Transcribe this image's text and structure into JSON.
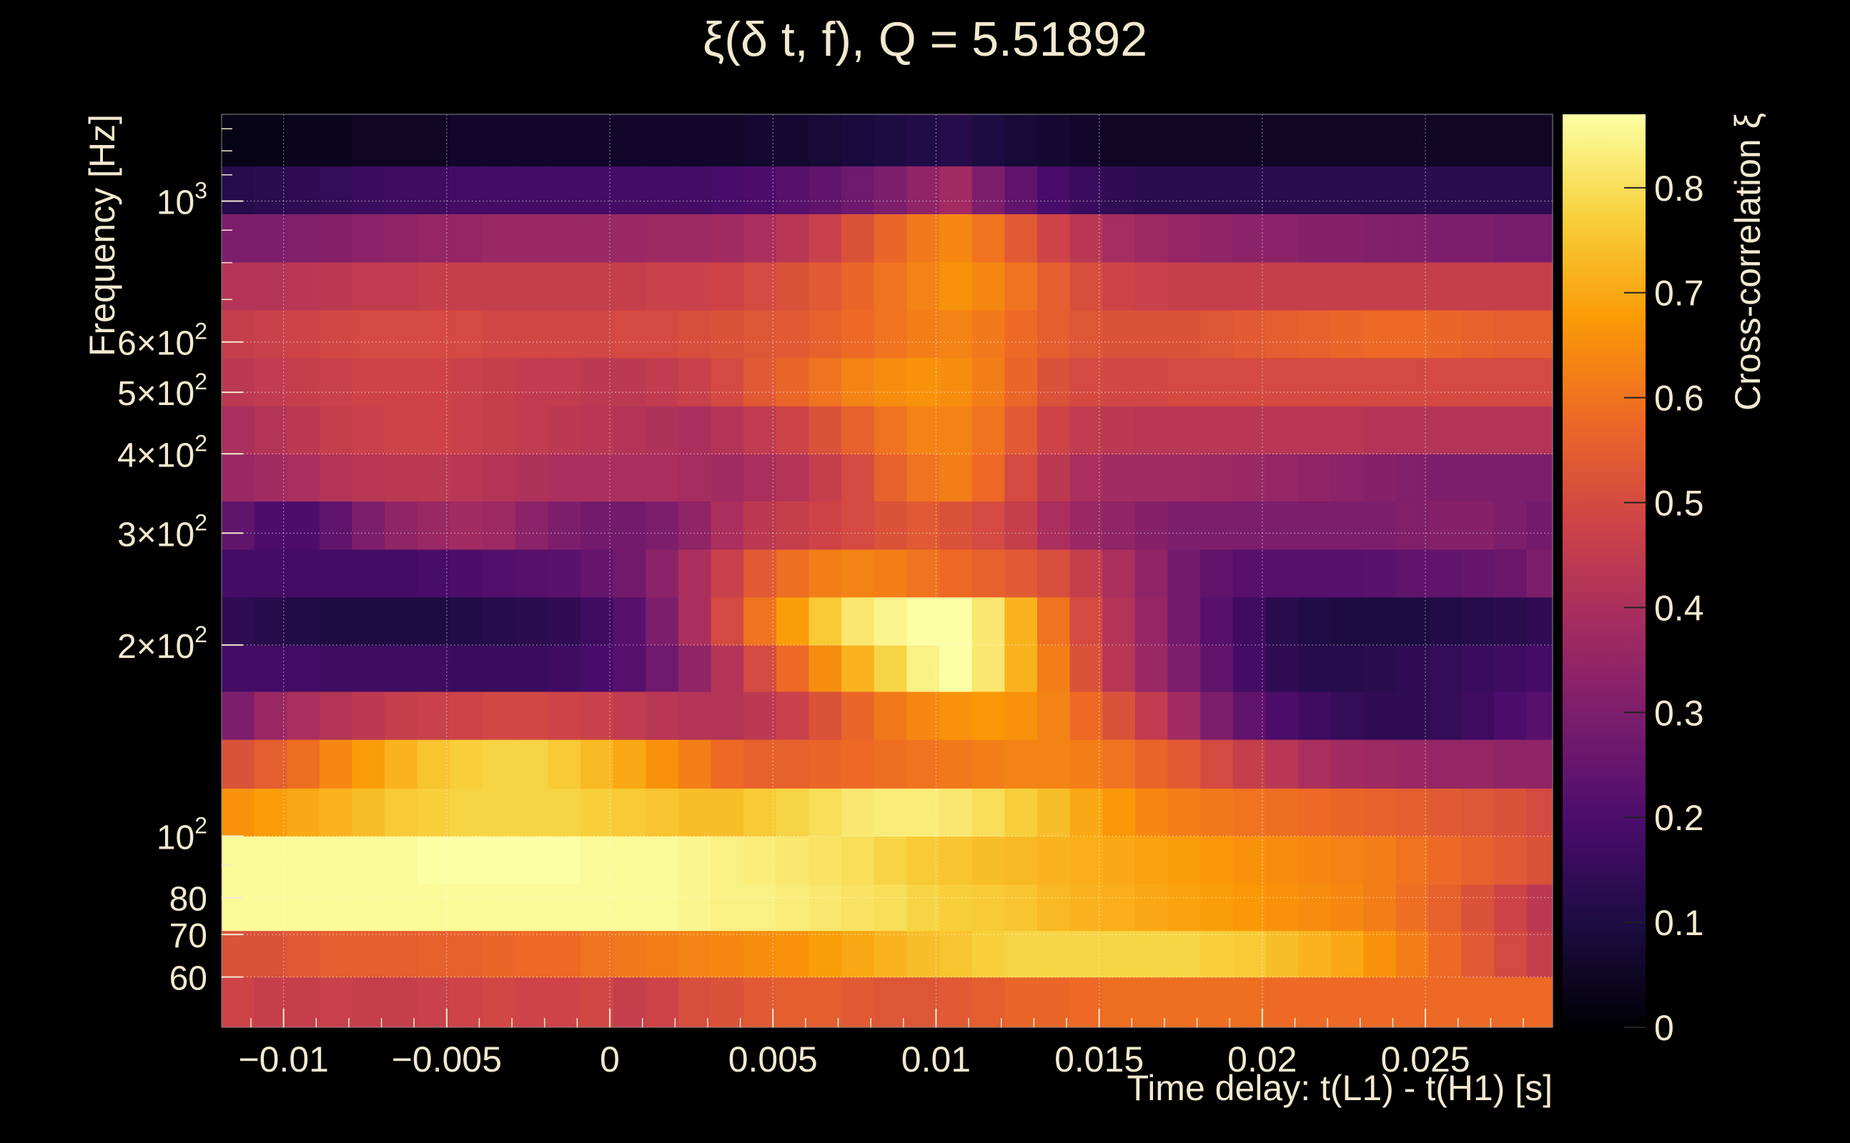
{
  "chart_data": {
    "type": "heatmap",
    "title": "ξ(δ t, f), Q = 5.51892",
    "xlabel": "Time delay: t(L1) - t(H1) [s]",
    "ylabel": "Frequency [Hz]",
    "colorbar_label": "Cross-correlation ξ",
    "xlim": [
      -0.0119,
      0.0289
    ],
    "ylim": [
      50,
      1370
    ],
    "y_scale": "log",
    "zlim": [
      0,
      0.87
    ],
    "colormap": [
      "#000004",
      "#1b0c41",
      "#4a0c6b",
      "#781c6d",
      "#a52c60",
      "#cf4446",
      "#ed6925",
      "#fb9b06",
      "#f7d13d",
      "#fcffa4"
    ],
    "grid": true,
    "x_ticks": [
      {
        "value": -0.01,
        "label": "−0.01"
      },
      {
        "value": -0.005,
        "label": "−0.005"
      },
      {
        "value": 0,
        "label": "0"
      },
      {
        "value": 0.005,
        "label": "0.005"
      },
      {
        "value": 0.01,
        "label": "0.01"
      },
      {
        "value": 0.015,
        "label": "0.015"
      },
      {
        "value": 0.02,
        "label": "0.02"
      },
      {
        "value": 0.025,
        "label": "0.025"
      }
    ],
    "y_ticks": [
      {
        "value": 60,
        "label": "60"
      },
      {
        "value": 70,
        "label": "70"
      },
      {
        "value": 80,
        "label": "80"
      },
      {
        "value": 100,
        "label": "10",
        "sup": "2"
      },
      {
        "value": 200,
        "label": "2×10",
        "sup": "2"
      },
      {
        "value": 300,
        "label": "3×10",
        "sup": "2"
      },
      {
        "value": 400,
        "label": "4×10",
        "sup": "2"
      },
      {
        "value": 500,
        "label": "5×10",
        "sup": "2"
      },
      {
        "value": 600,
        "label": "6×10",
        "sup": "2"
      },
      {
        "value": 1000,
        "label": "10",
        "sup": "3"
      }
    ],
    "colorbar_ticks": [
      {
        "value": 0,
        "label": "0"
      },
      {
        "value": 0.1,
        "label": "0.1"
      },
      {
        "value": 0.2,
        "label": "0.2"
      },
      {
        "value": 0.3,
        "label": "0.3"
      },
      {
        "value": 0.4,
        "label": "0.4"
      },
      {
        "value": 0.5,
        "label": "0.5"
      },
      {
        "value": 0.6,
        "label": "0.6"
      },
      {
        "value": 0.7,
        "label": "0.7"
      },
      {
        "value": 0.8,
        "label": "0.8"
      }
    ],
    "row_edges_hz": [
      50,
      60,
      71,
      84,
      100,
      119,
      142,
      169,
      200,
      238,
      283,
      337,
      400,
      476,
      567,
      674,
      802,
      955,
      1136,
      1370
    ],
    "x_bin_start": -0.0119,
    "x_bin_width": 0.001,
    "values": [
      [
        0.48,
        0.46,
        0.46,
        0.47,
        0.46,
        0.46,
        0.47,
        0.48,
        0.49,
        0.48,
        0.48,
        0.49,
        0.46,
        0.48,
        0.51,
        0.52,
        0.54,
        0.55,
        0.55,
        0.54,
        0.53,
        0.53,
        0.54,
        0.55,
        0.57,
        0.57,
        0.58,
        0.59,
        0.59,
        0.59,
        0.59,
        0.59,
        0.58,
        0.58,
        0.58,
        0.58,
        0.58,
        0.58,
        0.58,
        0.58,
        0.58
      ],
      [
        0.52,
        0.52,
        0.54,
        0.55,
        0.55,
        0.55,
        0.56,
        0.56,
        0.57,
        0.58,
        0.58,
        0.6,
        0.61,
        0.62,
        0.63,
        0.64,
        0.65,
        0.66,
        0.68,
        0.7,
        0.72,
        0.74,
        0.75,
        0.77,
        0.78,
        0.78,
        0.78,
        0.78,
        0.78,
        0.78,
        0.77,
        0.76,
        0.74,
        0.72,
        0.7,
        0.66,
        0.62,
        0.58,
        0.54,
        0.5,
        0.46
      ],
      [
        0.86,
        0.86,
        0.86,
        0.86,
        0.86,
        0.86,
        0.86,
        0.86,
        0.86,
        0.86,
        0.86,
        0.86,
        0.86,
        0.86,
        0.85,
        0.84,
        0.84,
        0.83,
        0.82,
        0.81,
        0.8,
        0.78,
        0.77,
        0.76,
        0.75,
        0.73,
        0.72,
        0.71,
        0.7,
        0.69,
        0.68,
        0.67,
        0.66,
        0.65,
        0.64,
        0.62,
        0.59,
        0.56,
        0.52,
        0.48,
        0.44
      ],
      [
        0.86,
        0.86,
        0.86,
        0.86,
        0.86,
        0.86,
        0.87,
        0.87,
        0.87,
        0.87,
        0.87,
        0.86,
        0.86,
        0.86,
        0.85,
        0.84,
        0.83,
        0.82,
        0.81,
        0.8,
        0.78,
        0.76,
        0.75,
        0.74,
        0.73,
        0.72,
        0.71,
        0.7,
        0.69,
        0.68,
        0.67,
        0.66,
        0.65,
        0.64,
        0.63,
        0.62,
        0.6,
        0.58,
        0.56,
        0.54,
        0.52
      ],
      [
        0.66,
        0.68,
        0.7,
        0.72,
        0.74,
        0.76,
        0.77,
        0.78,
        0.78,
        0.78,
        0.78,
        0.77,
        0.76,
        0.75,
        0.74,
        0.74,
        0.76,
        0.78,
        0.8,
        0.82,
        0.83,
        0.83,
        0.82,
        0.8,
        0.77,
        0.74,
        0.7,
        0.67,
        0.64,
        0.62,
        0.61,
        0.6,
        0.59,
        0.58,
        0.57,
        0.56,
        0.55,
        0.54,
        0.53,
        0.52,
        0.5
      ],
      [
        0.52,
        0.55,
        0.59,
        0.64,
        0.68,
        0.72,
        0.75,
        0.77,
        0.78,
        0.78,
        0.76,
        0.73,
        0.7,
        0.66,
        0.62,
        0.58,
        0.56,
        0.56,
        0.57,
        0.58,
        0.59,
        0.6,
        0.61,
        0.62,
        0.63,
        0.63,
        0.62,
        0.6,
        0.57,
        0.54,
        0.5,
        0.46,
        0.43,
        0.4,
        0.38,
        0.37,
        0.36,
        0.35,
        0.35,
        0.34,
        0.34
      ],
      [
        0.3,
        0.36,
        0.4,
        0.42,
        0.44,
        0.46,
        0.47,
        0.48,
        0.49,
        0.49,
        0.48,
        0.47,
        0.45,
        0.43,
        0.42,
        0.42,
        0.44,
        0.47,
        0.52,
        0.57,
        0.61,
        0.64,
        0.66,
        0.67,
        0.66,
        0.63,
        0.58,
        0.52,
        0.45,
        0.38,
        0.3,
        0.24,
        0.2,
        0.17,
        0.15,
        0.14,
        0.14,
        0.15,
        0.17,
        0.2,
        0.22
      ],
      [
        0.18,
        0.18,
        0.18,
        0.17,
        0.17,
        0.17,
        0.17,
        0.16,
        0.16,
        0.16,
        0.17,
        0.19,
        0.22,
        0.27,
        0.34,
        0.42,
        0.5,
        0.58,
        0.65,
        0.72,
        0.78,
        0.84,
        0.87,
        0.82,
        0.72,
        0.62,
        0.52,
        0.43,
        0.36,
        0.3,
        0.24,
        0.18,
        0.14,
        0.12,
        0.12,
        0.13,
        0.14,
        0.15,
        0.16,
        0.17,
        0.18
      ],
      [
        0.14,
        0.12,
        0.11,
        0.1,
        0.1,
        0.1,
        0.1,
        0.11,
        0.12,
        0.13,
        0.14,
        0.17,
        0.22,
        0.3,
        0.4,
        0.5,
        0.6,
        0.68,
        0.76,
        0.82,
        0.85,
        0.87,
        0.87,
        0.82,
        0.72,
        0.6,
        0.5,
        0.42,
        0.35,
        0.28,
        0.22,
        0.17,
        0.13,
        0.11,
        0.1,
        0.1,
        0.1,
        0.11,
        0.12,
        0.13,
        0.14
      ],
      [
        0.18,
        0.18,
        0.18,
        0.18,
        0.18,
        0.18,
        0.19,
        0.2,
        0.21,
        0.22,
        0.23,
        0.25,
        0.28,
        0.33,
        0.4,
        0.47,
        0.54,
        0.59,
        0.62,
        0.63,
        0.62,
        0.6,
        0.58,
        0.56,
        0.54,
        0.51,
        0.46,
        0.4,
        0.34,
        0.28,
        0.24,
        0.22,
        0.22,
        0.22,
        0.22,
        0.23,
        0.24,
        0.24,
        0.25,
        0.26,
        0.3
      ],
      [
        0.24,
        0.2,
        0.2,
        0.24,
        0.3,
        0.34,
        0.36,
        0.38,
        0.37,
        0.33,
        0.3,
        0.28,
        0.28,
        0.3,
        0.34,
        0.4,
        0.44,
        0.46,
        0.48,
        0.5,
        0.52,
        0.54,
        0.52,
        0.5,
        0.46,
        0.4,
        0.36,
        0.34,
        0.32,
        0.3,
        0.3,
        0.3,
        0.3,
        0.3,
        0.3,
        0.3,
        0.31,
        0.32,
        0.32,
        0.3,
        0.28
      ],
      [
        0.36,
        0.38,
        0.4,
        0.42,
        0.43,
        0.44,
        0.44,
        0.43,
        0.42,
        0.41,
        0.4,
        0.4,
        0.4,
        0.4,
        0.39,
        0.38,
        0.4,
        0.42,
        0.46,
        0.5,
        0.56,
        0.6,
        0.62,
        0.58,
        0.5,
        0.44,
        0.4,
        0.38,
        0.38,
        0.38,
        0.37,
        0.36,
        0.35,
        0.34,
        0.33,
        0.32,
        0.31,
        0.3,
        0.3,
        0.3,
        0.3
      ],
      [
        0.4,
        0.42,
        0.44,
        0.46,
        0.47,
        0.48,
        0.48,
        0.47,
        0.46,
        0.45,
        0.44,
        0.43,
        0.42,
        0.41,
        0.4,
        0.42,
        0.45,
        0.48,
        0.52,
        0.56,
        0.6,
        0.63,
        0.63,
        0.6,
        0.54,
        0.48,
        0.45,
        0.44,
        0.43,
        0.43,
        0.43,
        0.43,
        0.43,
        0.43,
        0.43,
        0.42,
        0.42,
        0.42,
        0.42,
        0.42,
        0.42
      ],
      [
        0.44,
        0.45,
        0.46,
        0.47,
        0.48,
        0.48,
        0.48,
        0.47,
        0.46,
        0.45,
        0.45,
        0.44,
        0.44,
        0.45,
        0.47,
        0.5,
        0.54,
        0.57,
        0.6,
        0.63,
        0.65,
        0.66,
        0.65,
        0.62,
        0.57,
        0.52,
        0.5,
        0.49,
        0.49,
        0.5,
        0.5,
        0.5,
        0.5,
        0.5,
        0.5,
        0.5,
        0.5,
        0.5,
        0.5,
        0.5,
        0.5
      ],
      [
        0.46,
        0.47,
        0.48,
        0.49,
        0.5,
        0.5,
        0.5,
        0.5,
        0.49,
        0.49,
        0.49,
        0.49,
        0.5,
        0.5,
        0.51,
        0.52,
        0.53,
        0.54,
        0.56,
        0.58,
        0.6,
        0.62,
        0.63,
        0.61,
        0.58,
        0.55,
        0.53,
        0.52,
        0.52,
        0.52,
        0.53,
        0.54,
        0.55,
        0.56,
        0.57,
        0.58,
        0.58,
        0.57,
        0.56,
        0.55,
        0.55
      ],
      [
        0.42,
        0.42,
        0.43,
        0.44,
        0.45,
        0.45,
        0.46,
        0.46,
        0.46,
        0.46,
        0.46,
        0.46,
        0.46,
        0.47,
        0.47,
        0.48,
        0.5,
        0.52,
        0.54,
        0.57,
        0.6,
        0.63,
        0.66,
        0.64,
        0.6,
        0.55,
        0.51,
        0.48,
        0.47,
        0.46,
        0.46,
        0.46,
        0.46,
        0.46,
        0.46,
        0.46,
        0.46,
        0.46,
        0.46,
        0.46,
        0.46
      ],
      [
        0.3,
        0.3,
        0.31,
        0.32,
        0.33,
        0.34,
        0.35,
        0.35,
        0.36,
        0.36,
        0.36,
        0.36,
        0.36,
        0.37,
        0.37,
        0.38,
        0.4,
        0.43,
        0.47,
        0.52,
        0.57,
        0.61,
        0.64,
        0.6,
        0.54,
        0.48,
        0.43,
        0.39,
        0.37,
        0.35,
        0.34,
        0.33,
        0.33,
        0.32,
        0.32,
        0.31,
        0.31,
        0.3,
        0.3,
        0.29,
        0.29
      ],
      [
        0.12,
        0.13,
        0.14,
        0.15,
        0.16,
        0.17,
        0.17,
        0.18,
        0.18,
        0.18,
        0.18,
        0.18,
        0.18,
        0.18,
        0.18,
        0.19,
        0.2,
        0.22,
        0.24,
        0.27,
        0.3,
        0.34,
        0.38,
        0.3,
        0.24,
        0.19,
        0.16,
        0.14,
        0.13,
        0.13,
        0.13,
        0.13,
        0.13,
        0.13,
        0.13,
        0.13,
        0.13,
        0.13,
        0.13,
        0.13,
        0.13
      ],
      [
        0.03,
        0.03,
        0.04,
        0.04,
        0.05,
        0.05,
        0.05,
        0.06,
        0.06,
        0.06,
        0.06,
        0.06,
        0.06,
        0.06,
        0.06,
        0.06,
        0.07,
        0.07,
        0.08,
        0.09,
        0.1,
        0.11,
        0.12,
        0.1,
        0.08,
        0.07,
        0.06,
        0.05,
        0.05,
        0.05,
        0.05,
        0.05,
        0.05,
        0.05,
        0.05,
        0.05,
        0.05,
        0.05,
        0.05,
        0.05,
        0.05
      ]
    ]
  }
}
